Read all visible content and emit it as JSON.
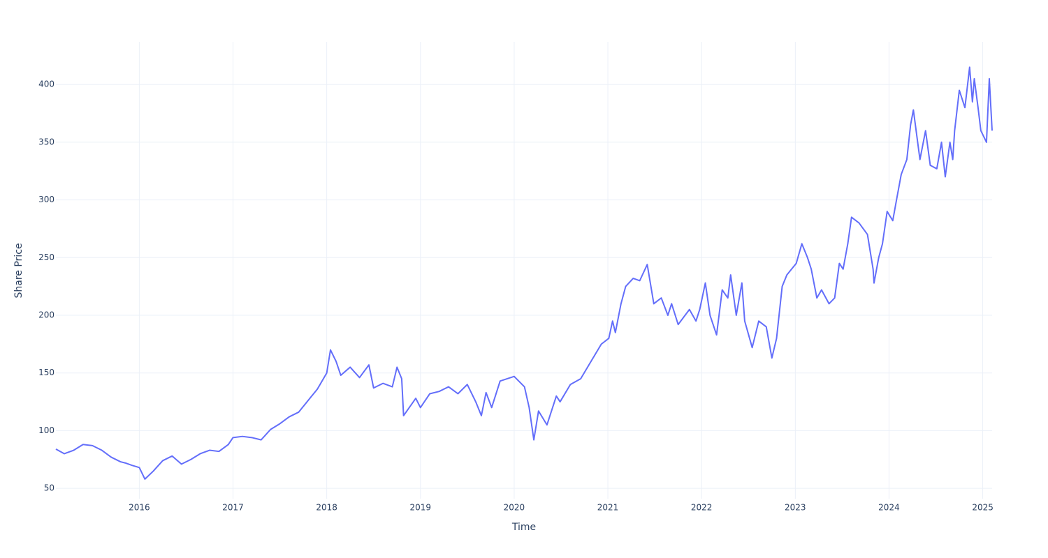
{
  "chart_data": {
    "type": "line",
    "x_label": "Time",
    "y_label": "Share Price",
    "color": "#636efa",
    "grid": true,
    "xlim": [
      2015.11,
      2025.1
    ],
    "ylim": [
      41,
      437
    ],
    "xticks": [
      2016,
      2017,
      2018,
      2019,
      2020,
      2021,
      2022,
      2023,
      2024,
      2025
    ],
    "yticks": [
      50,
      100,
      150,
      200,
      250,
      300,
      350,
      400
    ],
    "x": [
      2015.11,
      2015.2,
      2015.3,
      2015.4,
      2015.5,
      2015.6,
      2015.7,
      2015.8,
      2015.85,
      2015.92,
      2016.0,
      2016.06,
      2016.15,
      2016.25,
      2016.35,
      2016.45,
      2016.55,
      2016.65,
      2016.75,
      2016.85,
      2016.95,
      2017.0,
      2017.1,
      2017.2,
      2017.3,
      2017.4,
      2017.5,
      2017.6,
      2017.7,
      2017.8,
      2017.9,
      2018.0,
      2018.04,
      2018.1,
      2018.15,
      2018.25,
      2018.35,
      2018.45,
      2018.5,
      2018.6,
      2018.7,
      2018.75,
      2018.8,
      2018.82,
      2018.95,
      2019.0,
      2019.1,
      2019.2,
      2019.3,
      2019.4,
      2019.5,
      2019.59,
      2019.65,
      2019.7,
      2019.76,
      2019.85,
      2020.0,
      2020.11,
      2020.16,
      2020.21,
      2020.26,
      2020.35,
      2020.45,
      2020.49,
      2020.6,
      2020.71,
      2020.82,
      2020.93,
      2021.01,
      2021.05,
      2021.08,
      2021.14,
      2021.19,
      2021.27,
      2021.34,
      2021.42,
      2021.49,
      2021.57,
      2021.64,
      2021.68,
      2021.75,
      2021.87,
      2021.94,
      2021.98,
      2022.04,
      2022.09,
      2022.16,
      2022.22,
      2022.28,
      2022.31,
      2022.37,
      2022.43,
      2022.46,
      2022.54,
      2022.61,
      2022.69,
      2022.75,
      2022.8,
      2022.86,
      2022.91,
      2023.01,
      2023.07,
      2023.13,
      2023.17,
      2023.23,
      2023.28,
      2023.36,
      2023.42,
      2023.47,
      2023.51,
      2023.56,
      2023.6,
      2023.68,
      2023.77,
      2023.83,
      2023.84,
      2023.89,
      2023.93,
      2023.98,
      2024.04,
      2024.08,
      2024.13,
      2024.19,
      2024.23,
      2024.26,
      2024.33,
      2024.39,
      2024.44,
      2024.51,
      2024.56,
      2024.6,
      2024.65,
      2024.68,
      2024.7,
      2024.75,
      2024.81,
      2024.86,
      2024.89,
      2024.91,
      2024.95,
      2024.98,
      2025.04,
      2025.07,
      2025.1
    ],
    "values": [
      84,
      80,
      83,
      88,
      87,
      83,
      77,
      73,
      72,
      70,
      68,
      58,
      65,
      74,
      78,
      71,
      75,
      80,
      83,
      82,
      88,
      94,
      95,
      94,
      92,
      101,
      106,
      112,
      116,
      126,
      136,
      150,
      170,
      160,
      148,
      155,
      146,
      157,
      137,
      141,
      138,
      155,
      145,
      113,
      128,
      120,
      132,
      134,
      138,
      132,
      140,
      125,
      113,
      133,
      120,
      143,
      147,
      138,
      120,
      92,
      117,
      105,
      130,
      125,
      140,
      145,
      160,
      175,
      180,
      195,
      185,
      210,
      225,
      232,
      230,
      244,
      210,
      215,
      200,
      210,
      192,
      205,
      195,
      205,
      228,
      200,
      183,
      222,
      215,
      235,
      200,
      228,
      195,
      172,
      195,
      190,
      163,
      180,
      225,
      235,
      245,
      262,
      250,
      240,
      215,
      222,
      210,
      215,
      245,
      240,
      262,
      285,
      280,
      270,
      240,
      228,
      250,
      262,
      290,
      282,
      300,
      322,
      335,
      365,
      378,
      335,
      360,
      330,
      327,
      350,
      320,
      350,
      335,
      360,
      395,
      380,
      415,
      385,
      405,
      380,
      360,
      350,
      405,
      360
    ]
  }
}
